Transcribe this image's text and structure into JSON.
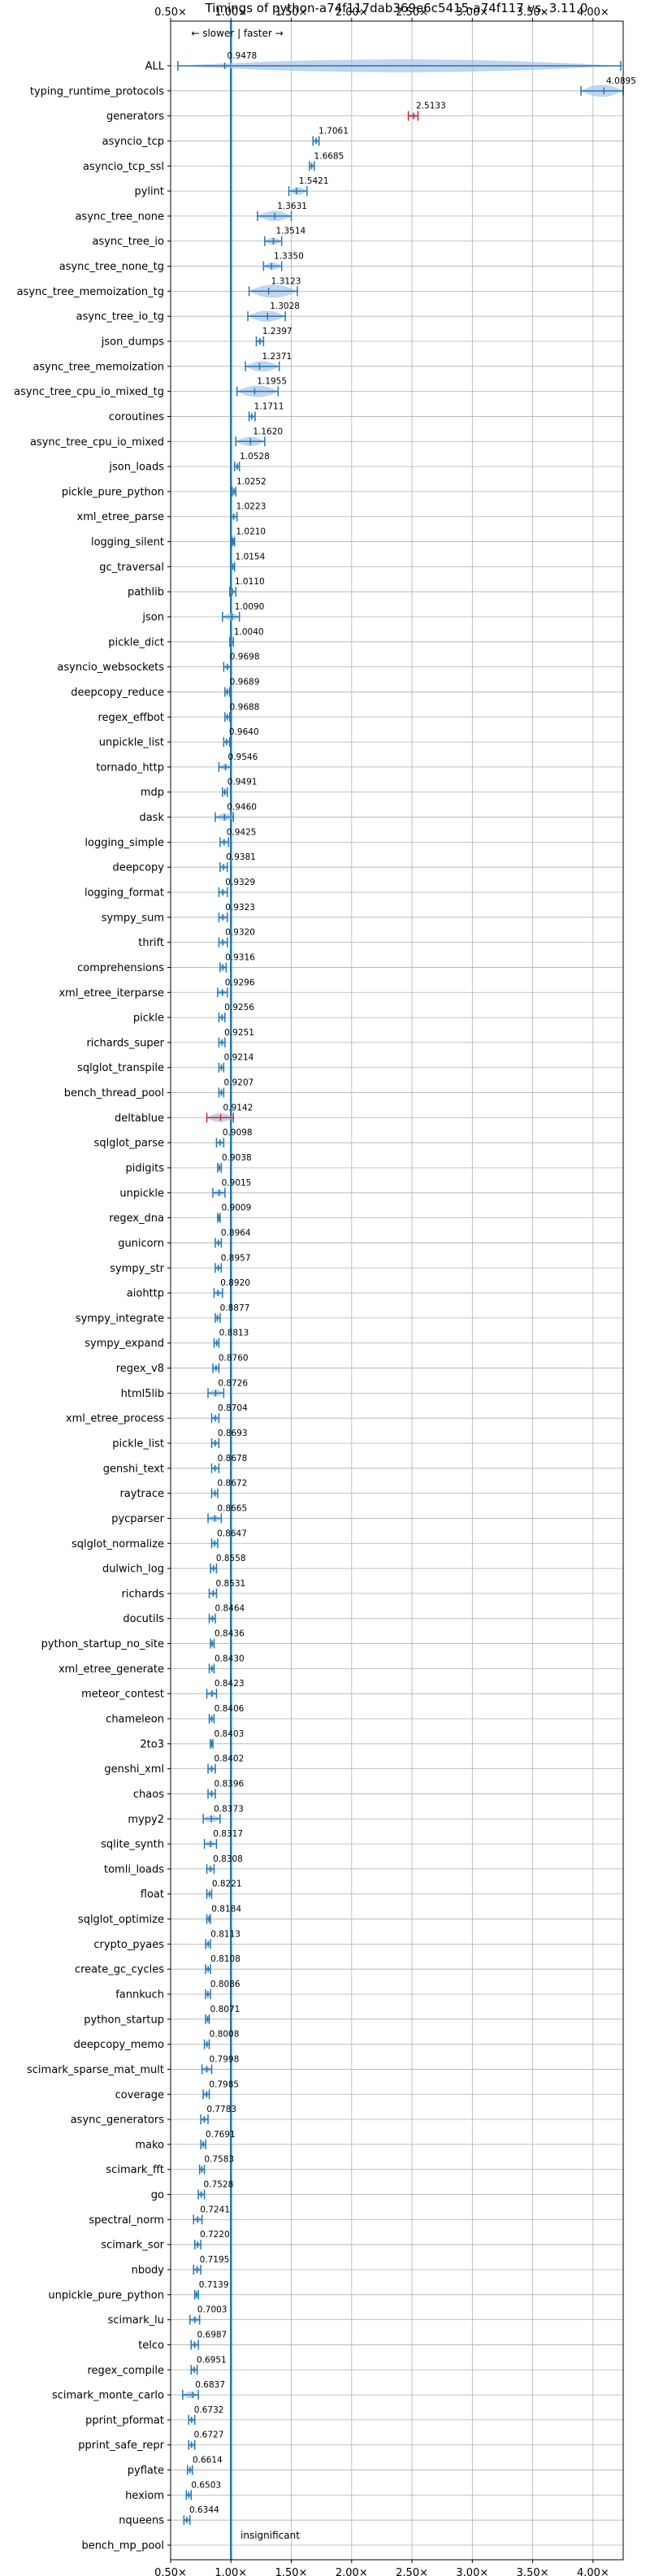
{
  "chart_data": {
    "type": "violin",
    "title": "Timings of python-a74f117dab369e6c5415-a74f117 vs. 3.11.0",
    "direction_note": "← slower | faster →",
    "xlim": [
      0.5,
      4.25
    ],
    "x_ticks": [
      0.5,
      1.0,
      1.5,
      2.0,
      2.5,
      3.0,
      3.5,
      4.0
    ],
    "x_tick_labels": [
      "0.50×",
      "1.00×",
      "1.50×",
      "2.00×",
      "2.50×",
      "3.00×",
      "3.50×",
      "4.00×"
    ],
    "reference_line": 1.0,
    "insignificant_label": "insignificant",
    "grid": true,
    "colors": {
      "significant": "#1f77b4",
      "insignificant": "#d62728",
      "fill": "#aec7e8"
    },
    "categories": [
      "ALL",
      "typing_runtime_protocols",
      "generators",
      "asyncio_tcp",
      "asyncio_tcp_ssl",
      "pylint",
      "async_tree_none",
      "async_tree_io",
      "async_tree_none_tg",
      "async_tree_memoization_tg",
      "async_tree_io_tg",
      "json_dumps",
      "async_tree_memoization",
      "async_tree_cpu_io_mixed_tg",
      "coroutines",
      "async_tree_cpu_io_mixed",
      "json_loads",
      "pickle_pure_python",
      "xml_etree_parse",
      "logging_silent",
      "gc_traversal",
      "pathlib",
      "json",
      "pickle_dict",
      "asyncio_websockets",
      "deepcopy_reduce",
      "regex_effbot",
      "unpickle_list",
      "tornado_http",
      "mdp",
      "dask",
      "logging_simple",
      "deepcopy",
      "logging_format",
      "sympy_sum",
      "thrift",
      "comprehensions",
      "xml_etree_iterparse",
      "pickle",
      "richards_super",
      "sqlglot_transpile",
      "bench_thread_pool",
      "deltablue",
      "sqlglot_parse",
      "pidigits",
      "unpickle",
      "regex_dna",
      "gunicorn",
      "sympy_str",
      "aiohttp",
      "sympy_integrate",
      "sympy_expand",
      "regex_v8",
      "html5lib",
      "xml_etree_process",
      "pickle_list",
      "genshi_text",
      "raytrace",
      "pycparser",
      "sqlglot_normalize",
      "dulwich_log",
      "richards",
      "docutils",
      "python_startup_no_site",
      "xml_etree_generate",
      "meteor_contest",
      "chameleon",
      "2to3",
      "genshi_xml",
      "chaos",
      "mypy2",
      "sqlite_synth",
      "tomli_loads",
      "float",
      "sqlglot_optimize",
      "crypto_pyaes",
      "create_gc_cycles",
      "fannkuch",
      "python_startup",
      "deepcopy_memo",
      "scimark_sparse_mat_mult",
      "coverage",
      "async_generators",
      "mako",
      "scimark_fft",
      "go",
      "spectral_norm",
      "scimark_sor",
      "nbody",
      "unpickle_pure_python",
      "scimark_lu",
      "telco",
      "regex_compile",
      "scimark_monte_carlo",
      "pprint_pformat",
      "pprint_safe_repr",
      "pyflate",
      "hexiom",
      "nqueens",
      "bench_mp_pool"
    ],
    "values": [
      0.9478,
      4.0895,
      2.5133,
      1.7061,
      1.6685,
      1.5421,
      1.3631,
      1.3514,
      1.335,
      1.3123,
      1.3028,
      1.2397,
      1.2371,
      1.1955,
      1.1711,
      1.162,
      1.0528,
      1.0252,
      1.0223,
      1.021,
      1.0154,
      1.011,
      1.009,
      1.004,
      0.9698,
      0.9689,
      0.9688,
      0.964,
      0.9546,
      0.9491,
      0.946,
      0.9425,
      0.9381,
      0.9329,
      0.9323,
      0.932,
      0.9316,
      0.9296,
      0.9256,
      0.9251,
      0.9214,
      0.9207,
      0.9142,
      0.9098,
      0.9038,
      0.9015,
      0.9009,
      0.8964,
      0.8957,
      0.892,
      0.8877,
      0.8813,
      0.876,
      0.8726,
      0.8704,
      0.8693,
      0.8678,
      0.8672,
      0.8665,
      0.8647,
      0.8558,
      0.8531,
      0.8464,
      0.8436,
      0.843,
      0.8423,
      0.8406,
      0.8403,
      0.8402,
      0.8396,
      0.8373,
      0.8317,
      0.8308,
      0.8221,
      0.8184,
      0.8113,
      0.8108,
      0.8086,
      0.8071,
      0.8008,
      0.7998,
      0.7985,
      0.7783,
      0.7691,
      0.7583,
      0.7528,
      0.7241,
      0.722,
      0.7195,
      0.7139,
      0.7003,
      0.6987,
      0.6951,
      0.6837,
      0.6732,
      0.6727,
      0.6614,
      0.6503,
      0.6344,
      null
    ],
    "value_labels": [
      "0.9478",
      "4.0895",
      "2.5133",
      "1.7061",
      "1.6685",
      "1.5421",
      "1.3631",
      "1.3514",
      "1.3350",
      "1.3123",
      "1.3028",
      "1.2397",
      "1.2371",
      "1.1955",
      "1.1711",
      "1.1620",
      "1.0528",
      "1.0252",
      "1.0223",
      "1.0210",
      "1.0154",
      "1.0110",
      "1.0090",
      "1.0040",
      "0.9698",
      "0.9689",
      "0.9688",
      "0.9640",
      "0.9546",
      "0.9491",
      "0.9460",
      "0.9425",
      "0.9381",
      "0.9329",
      "0.9323",
      "0.9320",
      "0.9316",
      "0.9296",
      "0.9256",
      "0.9251",
      "0.9214",
      "0.9207",
      "0.9142",
      "0.9098",
      "0.9038",
      "0.9015",
      "0.9009",
      "0.8964",
      "0.8957",
      "0.8920",
      "0.8877",
      "0.8813",
      "0.8760",
      "0.8726",
      "0.8704",
      "0.8693",
      "0.8678",
      "0.8672",
      "0.8665",
      "0.8647",
      "0.8558",
      "0.8531",
      "0.8464",
      "0.8436",
      "0.8430",
      "0.8423",
      "0.8406",
      "0.8403",
      "0.8402",
      "0.8396",
      "0.8373",
      "0.8317",
      "0.8308",
      "0.8221",
      "0.8184",
      "0.8113",
      "0.8108",
      "0.8086",
      "0.8071",
      "0.8008",
      "0.7998",
      "0.7985",
      "0.7783",
      "0.7691",
      "0.7583",
      "0.7528",
      "0.7241",
      "0.7220",
      "0.7195",
      "0.7139",
      "0.7003",
      "0.6987",
      "0.6951",
      "0.6837",
      "0.6732",
      "0.6727",
      "0.6614",
      "0.6503",
      "0.6344",
      ""
    ],
    "ranges": [
      [
        0.56,
        4.23
      ],
      [
        3.9,
        4.25
      ],
      [
        2.47,
        2.55
      ],
      [
        1.68,
        1.73
      ],
      [
        1.65,
        1.69
      ],
      [
        1.48,
        1.63
      ],
      [
        1.22,
        1.5
      ],
      [
        1.28,
        1.42
      ],
      [
        1.27,
        1.42
      ],
      [
        1.15,
        1.55
      ],
      [
        1.14,
        1.45
      ],
      [
        1.21,
        1.27
      ],
      [
        1.12,
        1.4
      ],
      [
        1.05,
        1.39
      ],
      [
        1.15,
        1.2
      ],
      [
        1.04,
        1.28
      ],
      [
        1.03,
        1.07
      ],
      [
        1.01,
        1.04
      ],
      [
        1.0,
        1.05
      ],
      [
        1.01,
        1.03
      ],
      [
        1.0,
        1.03
      ],
      [
        0.99,
        1.04
      ],
      [
        0.93,
        1.07
      ],
      [
        0.99,
        1.02
      ],
      [
        0.94,
        1.0
      ],
      [
        0.95,
        0.99
      ],
      [
        0.95,
        0.99
      ],
      [
        0.94,
        0.99
      ],
      [
        0.9,
        1.0
      ],
      [
        0.93,
        0.97
      ],
      [
        0.87,
        1.02
      ],
      [
        0.91,
        0.98
      ],
      [
        0.91,
        0.97
      ],
      [
        0.9,
        0.97
      ],
      [
        0.9,
        0.97
      ],
      [
        0.9,
        0.97
      ],
      [
        0.91,
        0.96
      ],
      [
        0.89,
        0.97
      ],
      [
        0.9,
        0.95
      ],
      [
        0.9,
        0.95
      ],
      [
        0.9,
        0.94
      ],
      [
        0.9,
        0.94
      ],
      [
        0.8,
        1.02
      ],
      [
        0.88,
        0.94
      ],
      [
        0.89,
        0.92
      ],
      [
        0.85,
        0.95
      ],
      [
        0.89,
        0.91
      ],
      [
        0.87,
        0.92
      ],
      [
        0.87,
        0.92
      ],
      [
        0.86,
        0.93
      ],
      [
        0.87,
        0.91
      ],
      [
        0.86,
        0.9
      ],
      [
        0.85,
        0.9
      ],
      [
        0.81,
        0.94
      ],
      [
        0.84,
        0.9
      ],
      [
        0.84,
        0.9
      ],
      [
        0.84,
        0.9
      ],
      [
        0.84,
        0.89
      ],
      [
        0.81,
        0.92
      ],
      [
        0.84,
        0.89
      ],
      [
        0.83,
        0.88
      ],
      [
        0.82,
        0.88
      ],
      [
        0.82,
        0.87
      ],
      [
        0.83,
        0.86
      ],
      [
        0.82,
        0.86
      ],
      [
        0.8,
        0.88
      ],
      [
        0.82,
        0.86
      ],
      [
        0.83,
        0.85
      ],
      [
        0.81,
        0.87
      ],
      [
        0.81,
        0.87
      ],
      [
        0.77,
        0.91
      ],
      [
        0.78,
        0.88
      ],
      [
        0.8,
        0.86
      ],
      [
        0.8,
        0.84
      ],
      [
        0.8,
        0.83
      ],
      [
        0.79,
        0.83
      ],
      [
        0.79,
        0.83
      ],
      [
        0.79,
        0.83
      ],
      [
        0.79,
        0.82
      ],
      [
        0.78,
        0.82
      ],
      [
        0.76,
        0.84
      ],
      [
        0.77,
        0.82
      ],
      [
        0.75,
        0.81
      ],
      [
        0.75,
        0.79
      ],
      [
        0.74,
        0.78
      ],
      [
        0.73,
        0.78
      ],
      [
        0.69,
        0.76
      ],
      [
        0.7,
        0.75
      ],
      [
        0.69,
        0.75
      ],
      [
        0.7,
        0.73
      ],
      [
        0.66,
        0.74
      ],
      [
        0.67,
        0.73
      ],
      [
        0.67,
        0.72
      ],
      [
        0.6,
        0.73
      ],
      [
        0.65,
        0.7
      ],
      [
        0.65,
        0.7
      ],
      [
        0.64,
        0.68
      ],
      [
        0.63,
        0.67
      ],
      [
        0.61,
        0.66
      ],
      [
        null,
        null
      ]
    ],
    "significant": [
      true,
      true,
      false,
      true,
      true,
      true,
      true,
      true,
      true,
      true,
      true,
      true,
      true,
      true,
      true,
      true,
      true,
      true,
      true,
      true,
      true,
      true,
      true,
      true,
      true,
      true,
      true,
      true,
      true,
      true,
      true,
      true,
      true,
      true,
      true,
      true,
      true,
      true,
      true,
      true,
      true,
      true,
      false,
      true,
      true,
      true,
      true,
      true,
      true,
      true,
      true,
      true,
      true,
      true,
      true,
      true,
      true,
      true,
      true,
      true,
      true,
      true,
      true,
      true,
      true,
      true,
      true,
      true,
      true,
      true,
      true,
      true,
      true,
      true,
      true,
      true,
      true,
      true,
      true,
      true,
      true,
      true,
      true,
      true,
      true,
      true,
      true,
      true,
      true,
      true,
      true,
      true,
      true,
      true,
      true,
      true,
      true,
      true,
      true,
      false
    ]
  }
}
